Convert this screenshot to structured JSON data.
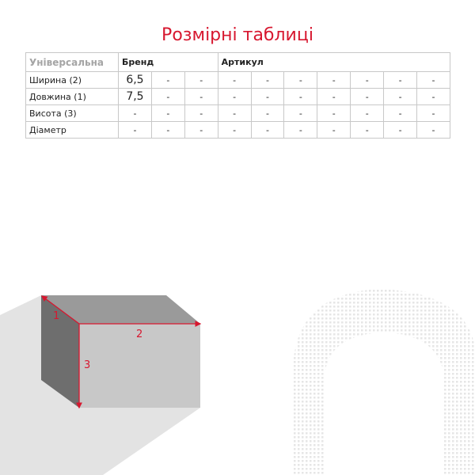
{
  "title": "Розмірні таблиці",
  "table": {
    "corner": "Універсальна",
    "brand_header": "Бренд",
    "article_header": "Артикул",
    "rows": [
      {
        "label": "Ширина (2)",
        "cells": [
          "6,5",
          "-",
          "-",
          "-",
          "-",
          "-",
          "-",
          "-",
          "-",
          "-"
        ]
      },
      {
        "label": "Довжина (1)",
        "cells": [
          "7,5",
          "-",
          "-",
          "-",
          "-",
          "-",
          "-",
          "-",
          "-",
          "-"
        ]
      },
      {
        "label": "Висота (3)",
        "cells": [
          "-",
          "-",
          "-",
          "-",
          "-",
          "-",
          "-",
          "-",
          "-",
          "-"
        ]
      },
      {
        "label": "Діаметр",
        "cells": [
          "-",
          "-",
          "-",
          "-",
          "-",
          "-",
          "-",
          "-",
          "-",
          "-"
        ]
      }
    ]
  },
  "diagram": {
    "labels": [
      "1",
      "2",
      "3"
    ],
    "accent": "#d7172f"
  }
}
